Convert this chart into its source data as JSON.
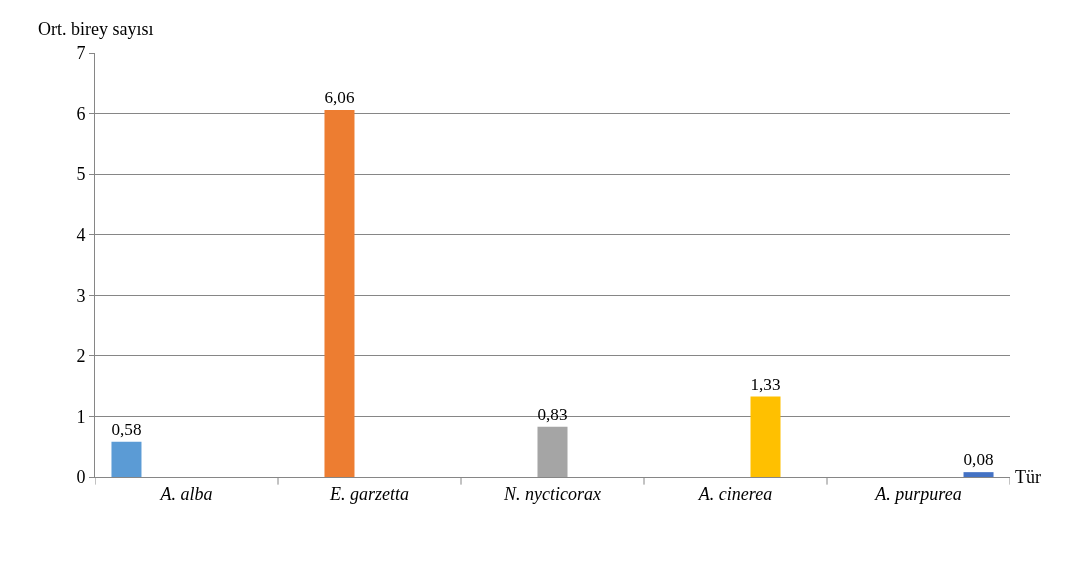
{
  "chart_data": {
    "type": "bar",
    "ylabel": "Ort. birey sayısı",
    "xlabel": "Tür",
    "categories": [
      "A. alba",
      "E. garzetta",
      "N. nycticorax",
      "A. cinerea",
      "A. purpurea"
    ],
    "series": [
      {
        "color": "#5b9bd5",
        "values": [
          0.58,
          null,
          null,
          null,
          null
        ],
        "value_labels": [
          "0,58",
          null,
          null,
          null,
          null
        ]
      },
      {
        "color": "#ed7d31",
        "values": [
          null,
          6.06,
          null,
          null,
          null
        ],
        "value_labels": [
          null,
          "6,06",
          null,
          null,
          null
        ]
      },
      {
        "color": "#a5a5a5",
        "values": [
          null,
          null,
          0.83,
          null,
          null
        ],
        "value_labels": [
          null,
          null,
          "0,83",
          null,
          null
        ]
      },
      {
        "color": "#ffc000",
        "values": [
          null,
          null,
          null,
          1.33,
          null
        ],
        "value_labels": [
          null,
          null,
          null,
          "1,33",
          null
        ]
      },
      {
        "color": "#4472c4",
        "values": [
          null,
          null,
          null,
          null,
          0.08
        ],
        "value_labels": [
          null,
          null,
          null,
          null,
          "0,08"
        ]
      }
    ],
    "ylim": [
      0,
      7
    ],
    "yticks": [
      0,
      1,
      2,
      3,
      4,
      5,
      6,
      7
    ],
    "grid": "y",
    "legend": false
  }
}
